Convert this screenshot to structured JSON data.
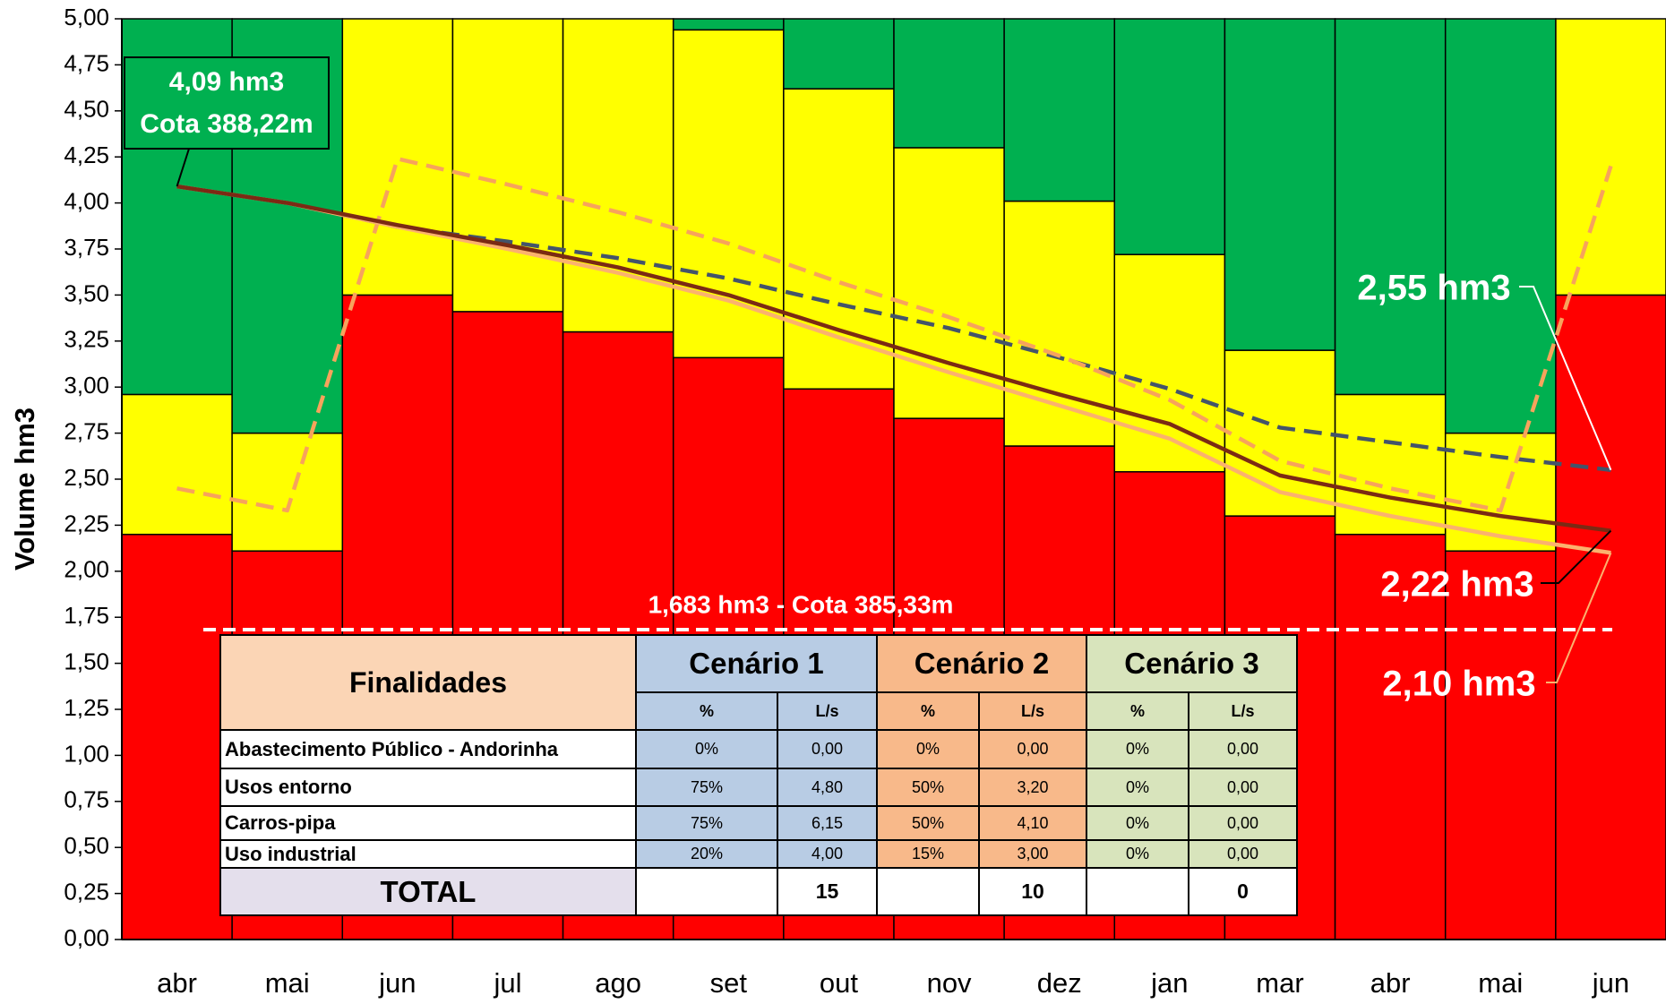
{
  "chart_data": {
    "type": "bar",
    "stacked": true,
    "y_label": "Volume hm3",
    "categories": [
      "abr",
      "mai",
      "jun",
      "jul",
      "ago",
      "set",
      "out",
      "nov",
      "dez",
      "jan",
      "mar",
      "abr",
      "mai",
      "jun"
    ],
    "series": [
      {
        "type": "bar",
        "color": "#ff0000",
        "values": [
          2.2,
          2.11,
          3.5,
          3.41,
          3.3,
          3.16,
          2.99,
          2.83,
          2.68,
          2.54,
          2.3,
          2.2,
          2.11,
          3.5
        ]
      },
      {
        "type": "bar",
        "color": "#ffff00",
        "values": [
          0.76,
          0.64,
          1.5,
          1.59,
          1.7,
          1.78,
          1.63,
          1.47,
          1.33,
          1.18,
          0.9,
          0.76,
          0.64,
          1.5
        ]
      },
      {
        "type": "bar",
        "color": "#00b050",
        "values": [
          2.04,
          2.25,
          0,
          0,
          0,
          0.06,
          0.38,
          0.7,
          0.99,
          1.28,
          1.8,
          2.04,
          2.25,
          0
        ]
      },
      {
        "type": "line",
        "dashed": true,
        "color": "#44546a",
        "values": [
          4.09,
          4.0,
          3.87,
          3.79,
          3.7,
          3.59,
          3.45,
          3.32,
          3.16,
          2.99,
          2.78,
          2.7,
          2.62,
          2.55
        ]
      },
      {
        "type": "line",
        "dashed": true,
        "color": "#f7a35c",
        "values": [
          2.45,
          2.33,
          4.24,
          4.1,
          3.95,
          3.78,
          3.57,
          3.38,
          3.17,
          2.93,
          2.6,
          2.45,
          2.33,
          4.2
        ]
      },
      {
        "type": "line",
        "dashed": false,
        "color": "#fbb26e",
        "values": [
          4.09,
          4.0,
          3.87,
          3.75,
          3.62,
          3.47,
          3.27,
          3.08,
          2.9,
          2.72,
          2.43,
          2.3,
          2.19,
          2.1
        ]
      },
      {
        "type": "line",
        "dashed": false,
        "color": "#7b2a14",
        "values": [
          4.09,
          4.0,
          3.88,
          3.77,
          3.65,
          3.5,
          3.31,
          3.13,
          2.96,
          2.8,
          2.52,
          2.4,
          2.3,
          2.22
        ]
      }
    ],
    "ylim": [
      0,
      5
    ],
    "yticks": [
      {
        "value": 0,
        "label": "0,00"
      },
      {
        "value": 0.25,
        "label": "0,25"
      },
      {
        "value": 0.5,
        "label": "0,50"
      },
      {
        "value": 0.75,
        "label": "0,75"
      },
      {
        "value": 1,
        "label": "1,00"
      },
      {
        "value": 1.25,
        "label": "1,25"
      },
      {
        "value": 1.5,
        "label": "1,50"
      },
      {
        "value": 1.75,
        "label": "1,75"
      },
      {
        "value": 2,
        "label": "2,00"
      },
      {
        "value": 2.25,
        "label": "2,25"
      },
      {
        "value": 2.5,
        "label": "2,50"
      },
      {
        "value": 2.75,
        "label": "2,75"
      },
      {
        "value": 3,
        "label": "3,00"
      },
      {
        "value": 3.25,
        "label": "3,25"
      },
      {
        "value": 3.5,
        "label": "3,50"
      },
      {
        "value": 3.75,
        "label": "3,75"
      },
      {
        "value": 4,
        "label": "4,00"
      },
      {
        "value": 4.25,
        "label": "4,25"
      },
      {
        "value": 4.5,
        "label": "4,50"
      },
      {
        "value": 4.75,
        "label": "4,75"
      },
      {
        "value": 5,
        "label": "5,00"
      }
    ],
    "grid": false,
    "reference_line": {
      "value": 1.683,
      "label": "1,683 hm3 - Cota 385,33m"
    },
    "annotations": [
      {
        "lines": [
          "4,09 hm3",
          "Cota 388,22m"
        ]
      },
      {
        "lines": [
          "2,55 hm3"
        ]
      },
      {
        "lines": [
          "2,22 hm3"
        ]
      },
      {
        "lines": [
          "2,10 hm3"
        ]
      }
    ]
  },
  "table": {
    "header": [
      "Finalidades",
      "Cenário 1",
      "Cenário 2",
      "Cenário 3"
    ],
    "subheader": [
      "%",
      "L/s",
      "%",
      "L/s",
      "%",
      "L/s"
    ],
    "rows": [
      [
        "Abastecimento Público - Andorinha",
        "0%",
        "0,00",
        "0%",
        "0,00",
        "0%",
        "0,00"
      ],
      [
        "Usos entorno",
        "75%",
        "4,80",
        "50%",
        "3,20",
        "0%",
        "0,00"
      ],
      [
        "Carros-pipa",
        "75%",
        "6,15",
        "50%",
        "4,10",
        "0%",
        "0,00"
      ],
      [
        "Uso industrial",
        "20%",
        "4,00",
        "15%",
        "3,00",
        "0%",
        "0,00"
      ]
    ],
    "total": {
      "label": "TOTAL",
      "values": [
        "15",
        "10",
        "0"
      ]
    }
  }
}
